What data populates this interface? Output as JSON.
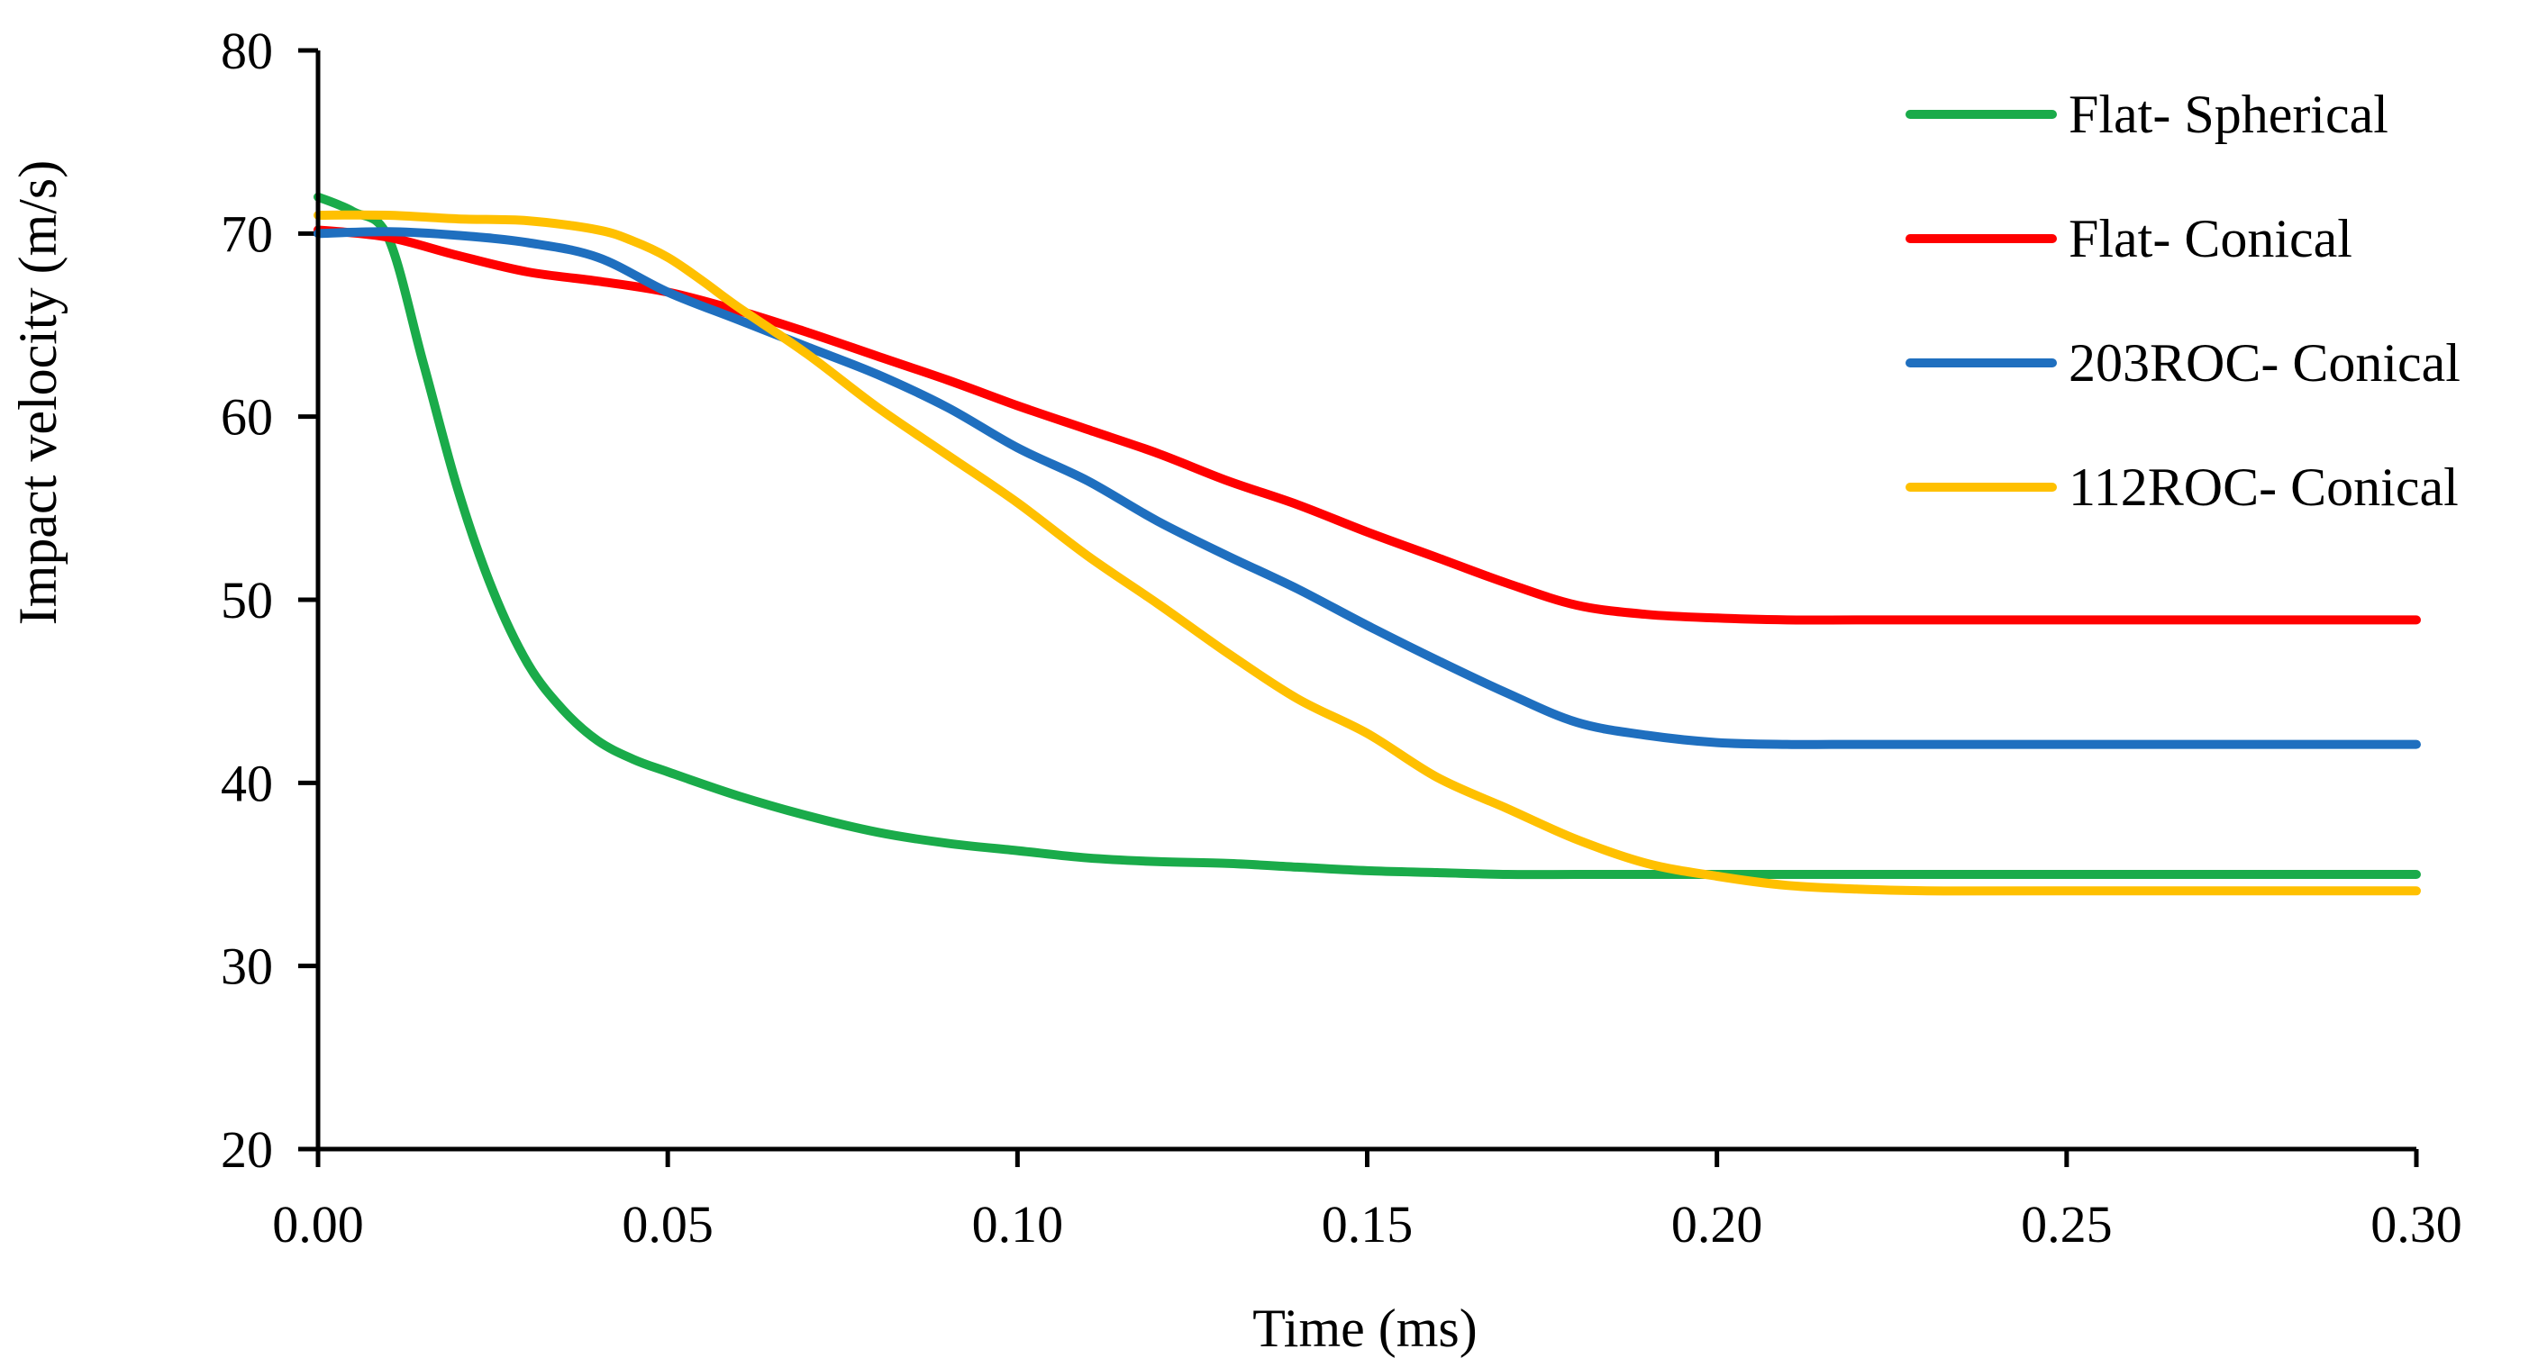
{
  "chart_data": {
    "type": "line",
    "title": "",
    "xlabel": "Time (ms)",
    "ylabel": "Impact velocity (m/s)",
    "xlim": [
      0,
      0.3
    ],
    "ylim": [
      20,
      80
    ],
    "xticks": [
      0,
      0.05,
      0.1,
      0.15,
      0.2,
      0.25,
      0.3
    ],
    "xtick_labels": [
      "0.00",
      "0.05",
      "0.10",
      "0.15",
      "0.20",
      "0.25",
      "0.30"
    ],
    "yticks": [
      20,
      30,
      40,
      50,
      60,
      70,
      80
    ],
    "ytick_labels": [
      "20",
      "30",
      "40",
      "50",
      "60",
      "70",
      "80"
    ],
    "grid": false,
    "legend_position": "top-right",
    "series": [
      {
        "name": "Flat- Spherical",
        "color": "#1aab4a",
        "x": [
          0,
          0.005,
          0.01,
          0.015,
          0.02,
          0.025,
          0.03,
          0.035,
          0.04,
          0.045,
          0.05,
          0.06,
          0.07,
          0.08,
          0.09,
          0.1,
          0.11,
          0.12,
          0.13,
          0.14,
          0.15,
          0.16,
          0.17,
          0.18,
          0.19,
          0.2,
          0.22,
          0.25,
          0.3
        ],
        "values": [
          72,
          71.2,
          69.8,
          63,
          56,
          50.5,
          46.5,
          44,
          42.3,
          41.3,
          40.6,
          39.3,
          38.2,
          37.3,
          36.7,
          36.3,
          35.9,
          35.7,
          35.6,
          35.4,
          35.2,
          35.1,
          35.0,
          35.0,
          35.0,
          35.0,
          35.0,
          35.0,
          35.0
        ]
      },
      {
        "name": "Flat- Conical",
        "color": "#ff0000",
        "x": [
          0,
          0.01,
          0.02,
          0.03,
          0.04,
          0.05,
          0.06,
          0.07,
          0.08,
          0.09,
          0.1,
          0.11,
          0.12,
          0.13,
          0.14,
          0.15,
          0.16,
          0.17,
          0.18,
          0.19,
          0.2,
          0.21,
          0.22,
          0.25,
          0.3
        ],
        "values": [
          70.2,
          69.8,
          68.8,
          67.9,
          67.4,
          66.8,
          65.8,
          64.6,
          63.3,
          62,
          60.6,
          59.3,
          58,
          56.5,
          55.2,
          53.7,
          52.3,
          50.9,
          49.7,
          49.2,
          49.0,
          48.9,
          48.9,
          48.9,
          48.9
        ]
      },
      {
        "name": "203ROC- Conical",
        "color": "#1f6fbf",
        "x": [
          0,
          0.01,
          0.02,
          0.03,
          0.04,
          0.05,
          0.06,
          0.07,
          0.08,
          0.09,
          0.1,
          0.11,
          0.12,
          0.13,
          0.14,
          0.15,
          0.16,
          0.17,
          0.18,
          0.19,
          0.2,
          0.21,
          0.22,
          0.25,
          0.3
        ],
        "values": [
          70,
          70.1,
          69.9,
          69.5,
          68.7,
          66.8,
          65.3,
          63.8,
          62.3,
          60.5,
          58.3,
          56.5,
          54.3,
          52.4,
          50.6,
          48.6,
          46.7,
          44.9,
          43.3,
          42.6,
          42.2,
          42.1,
          42.1,
          42.1,
          42.1
        ]
      },
      {
        "name": "112ROC- Conical",
        "color": "#ffc000",
        "x": [
          0,
          0.01,
          0.02,
          0.03,
          0.04,
          0.045,
          0.05,
          0.055,
          0.06,
          0.07,
          0.08,
          0.09,
          0.1,
          0.11,
          0.12,
          0.13,
          0.14,
          0.15,
          0.16,
          0.17,
          0.18,
          0.19,
          0.2,
          0.21,
          0.22,
          0.23,
          0.25,
          0.3
        ],
        "values": [
          71,
          71,
          70.8,
          70.7,
          70.2,
          69.6,
          68.7,
          67.4,
          66,
          63.4,
          60.5,
          57.9,
          55.3,
          52.4,
          49.8,
          47.1,
          44.6,
          42.7,
          40.3,
          38.6,
          36.9,
          35.6,
          34.9,
          34.4,
          34.2,
          34.1,
          34.1,
          34.1
        ]
      }
    ]
  }
}
